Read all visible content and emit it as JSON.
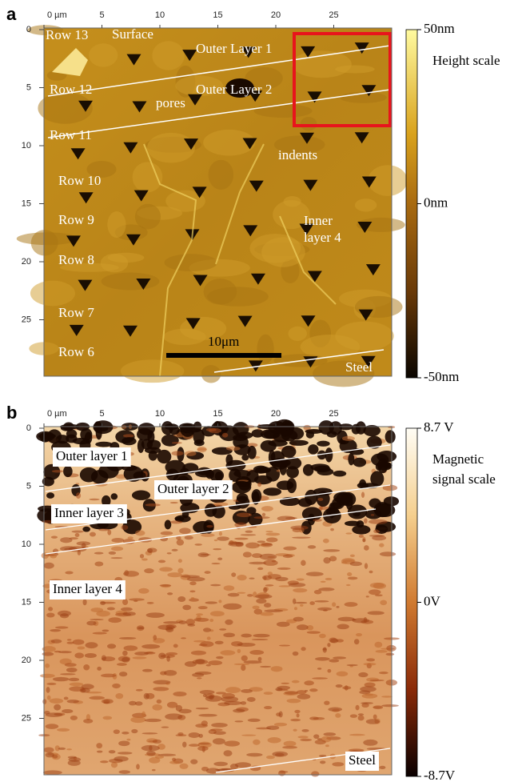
{
  "panels": [
    {
      "label": "a",
      "x_ticks": [
        "0 µm",
        "5",
        "10",
        "15",
        "20",
        "25"
      ],
      "y_ticks": [
        "0",
        "5",
        "10",
        "15",
        "20",
        "25"
      ],
      "annotations": [
        "Row 13",
        "Surface",
        "Outer Layer 1",
        "Row 12",
        "Outer Layer 2",
        "pores",
        "Row 11",
        "indents",
        "Row 10",
        "Row 9",
        "Inner",
        "layer 4",
        "Row 8",
        "Row 7",
        "Row 6",
        "10μm",
        "Steel"
      ],
      "colorbar": {
        "max": "50nm",
        "mid": "0nm",
        "min": "-50nm",
        "title": [
          "Height scale"
        ]
      }
    },
    {
      "label": "b",
      "x_ticks": [
        "0 µm",
        "5",
        "10",
        "15",
        "20",
        "25"
      ],
      "y_ticks": [
        "0",
        "5",
        "10",
        "15",
        "20",
        "25"
      ],
      "annotations": [
        "Outer layer 1",
        "Outer layer 2",
        "Inner layer 3",
        "Inner layer 4",
        "Steel"
      ],
      "colorbar": {
        "max": "8.7 V",
        "mid": "0V",
        "min": "-8.7V",
        "title": [
          "Magnetic",
          "signal scale"
        ]
      }
    }
  ]
}
